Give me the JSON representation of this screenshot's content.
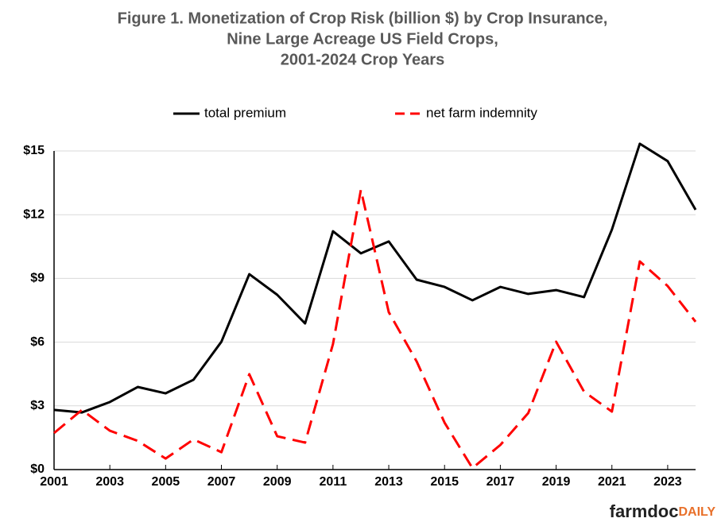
{
  "chart_data": {
    "type": "line",
    "title": [
      "Figure 1.  Monetization of Crop Risk (billion $) by Crop Insurance,",
      "Nine Large Acreage US Field Crops,",
      "2001-2024 Crop Years"
    ],
    "x": [
      2001,
      2002,
      2003,
      2004,
      2005,
      2006,
      2007,
      2008,
      2009,
      2010,
      2011,
      2012,
      2013,
      2014,
      2015,
      2016,
      2017,
      2018,
      2019,
      2020,
      2021,
      2022,
      2023,
      2024
    ],
    "series": [
      {
        "name": "total premium",
        "color": "#000000",
        "dash": false,
        "values": [
          2.81,
          2.69,
          3.18,
          3.89,
          3.59,
          4.23,
          6.02,
          9.2,
          8.23,
          6.88,
          11.22,
          10.18,
          10.74,
          8.94,
          8.6,
          7.97,
          8.6,
          8.27,
          8.45,
          8.12,
          11.3,
          15.34,
          14.52,
          12.23
        ]
      },
      {
        "name": "net farm indemnity",
        "color": "#ff0000",
        "dash": true,
        "values": [
          1.72,
          2.81,
          1.83,
          1.35,
          0.52,
          1.42,
          0.82,
          4.49,
          1.57,
          1.27,
          5.91,
          13.17,
          7.41,
          5.09,
          2.21,
          0.07,
          1.16,
          2.66,
          6.02,
          3.67,
          2.73,
          9.8,
          8.64,
          6.96
        ]
      }
    ],
    "xlim": [
      2001,
      2024
    ],
    "xticks": [
      2001,
      2003,
      2005,
      2007,
      2009,
      2011,
      2013,
      2015,
      2017,
      2019,
      2021,
      2023
    ],
    "ylim": [
      0,
      15
    ],
    "yticks": [
      {
        "value": 0,
        "label": "$0"
      },
      {
        "value": 3,
        "label": "$3"
      },
      {
        "value": 6,
        "label": "$6"
      },
      {
        "value": 9,
        "label": "$9"
      },
      {
        "value": 12,
        "label": "$12"
      },
      {
        "value": 15,
        "label": "$15"
      }
    ],
    "grid": true,
    "legend": "top",
    "logo": {
      "main": "farmdoc",
      "accent": "DAILY"
    }
  }
}
